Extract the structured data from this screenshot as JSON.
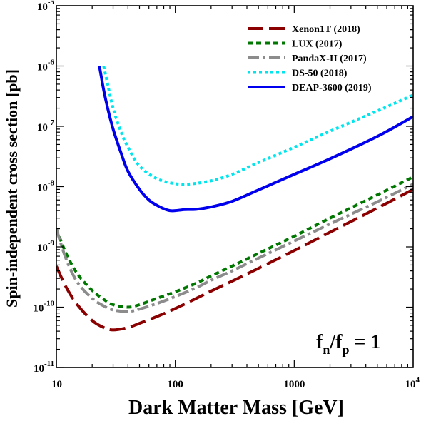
{
  "chart_data": {
    "type": "line",
    "xlabel": "Dark Matter Mass [GeV]",
    "ylabel": "Spin-independent cross section [pb]",
    "xscale": "log",
    "yscale": "log",
    "xlim": [
      10,
      10000
    ],
    "ylim": [
      1e-11,
      1e-05
    ],
    "x_ticks": [
      {
        "value": 10,
        "label": "10"
      },
      {
        "value": 100,
        "label": "100"
      },
      {
        "value": 1000,
        "label": "1000"
      },
      {
        "value": 10000,
        "label": "10",
        "sup": "4"
      }
    ],
    "y_ticks": [
      {
        "value": 1e-11,
        "exp": "-11"
      },
      {
        "value": 1e-10,
        "exp": "-10"
      },
      {
        "value": 1e-09,
        "exp": "-9"
      },
      {
        "value": 1e-08,
        "exp": "-8"
      },
      {
        "value": 1e-07,
        "exp": "-7"
      },
      {
        "value": 1e-06,
        "exp": "-6"
      },
      {
        "value": 1e-05,
        "exp": "-5"
      }
    ],
    "tick_base": "10",
    "legend_position": "top-right",
    "annotation": {
      "main": "f",
      "sub1": "n",
      "slash": "/f",
      "sub2": "p",
      "rest": " = 1"
    },
    "series": [
      {
        "name": "Xenon1T (2018)",
        "color": "#8b0000",
        "dash": "long-dash",
        "x": [
          10,
          12,
          15,
          20,
          25,
          30,
          40,
          50,
          70,
          100,
          150,
          200,
          300,
          500,
          1000,
          2000,
          5000,
          10000
        ],
        "y": [
          4.8e-10,
          2.2e-10,
          1.1e-10,
          6e-11,
          4.6e-11,
          4.2e-11,
          4.6e-11,
          5.4e-11,
          7e-11,
          9.5e-11,
          1.4e-10,
          1.85e-10,
          2.7e-10,
          4.4e-10,
          8.7e-10,
          1.75e-09,
          4.4e-09,
          9e-09
        ]
      },
      {
        "name": "LUX (2017)",
        "color": "#007700",
        "dash": "short-dash",
        "x": [
          10,
          12,
          15,
          20,
          25,
          30,
          40,
          50,
          70,
          100,
          150,
          200,
          300,
          500,
          1000,
          2000,
          5000,
          10000
        ],
        "y": [
          2e-09,
          8e-10,
          3.6e-10,
          1.9e-10,
          1.35e-10,
          1.1e-10,
          1e-10,
          1.1e-10,
          1.4e-10,
          1.8e-10,
          2.5e-10,
          3.3e-10,
          4.8e-10,
          7.8e-10,
          1.5e-09,
          3e-09,
          7.3e-09,
          1.45e-08
        ]
      },
      {
        "name": "PandaX-II (2017)",
        "color": "#8c8c8c",
        "dash": "dash-dot",
        "x": [
          10,
          12,
          15,
          20,
          25,
          30,
          40,
          50,
          70,
          100,
          150,
          200,
          300,
          500,
          1000,
          2000,
          5000,
          10000
        ],
        "y": [
          2e-09,
          6.5e-10,
          2.6e-10,
          1.4e-10,
          1.05e-10,
          9e-11,
          8.5e-11,
          9.3e-11,
          1.15e-10,
          1.5e-10,
          2.1e-10,
          2.8e-10,
          4e-10,
          6.5e-10,
          1.25e-09,
          2.4e-09,
          5.6e-09,
          1.1e-08
        ]
      },
      {
        "name": "DS-50 (2018)",
        "color": "#00e5ee",
        "dash": "dotted",
        "x": [
          25,
          27,
          30,
          35,
          40,
          50,
          70,
          100,
          130,
          200,
          300,
          500,
          1000,
          2000,
          5000,
          10000
        ],
        "y": [
          1e-06,
          5e-07,
          2e-07,
          8e-08,
          4.5e-08,
          2.2e-08,
          1.35e-08,
          1.12e-08,
          1.1e-08,
          1.25e-08,
          1.6e-08,
          2.5e-08,
          4.5e-08,
          8.3e-08,
          1.8e-07,
          3.3e-07
        ]
      },
      {
        "name": "DEAP-3600 (2019)",
        "color": "#0000ee",
        "dash": "solid",
        "x": [
          23,
          25,
          27,
          30,
          35,
          40,
          50,
          60,
          70,
          80,
          90,
          100,
          120,
          150,
          200,
          300,
          500,
          1000,
          2000,
          5000,
          10000
        ],
        "y": [
          1e-06,
          4e-07,
          2e-07,
          9e-08,
          3.6e-08,
          1.8e-08,
          9e-09,
          6e-09,
          4.9e-09,
          4.3e-09,
          4e-09,
          4e-09,
          4.15e-09,
          4.2e-09,
          4.6e-09,
          5.7e-09,
          8.8e-09,
          1.6e-08,
          2.9e-08,
          6.8e-08,
          1.45e-07
        ]
      }
    ]
  }
}
